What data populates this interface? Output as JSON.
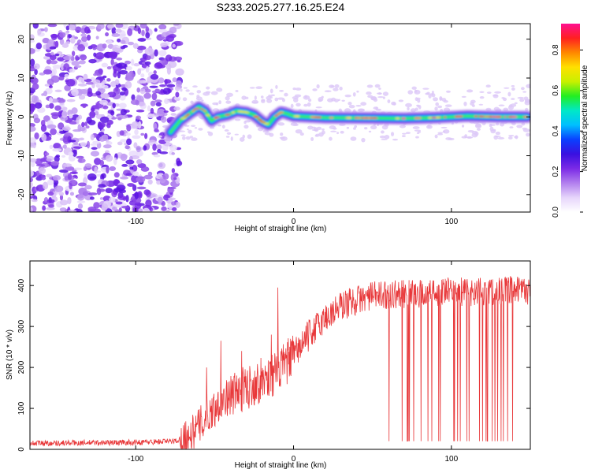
{
  "title": "S233.2025.277.16.25.E24",
  "chart_data": [
    {
      "type": "heatmap",
      "name": "spectrogram",
      "xlabel": "Height of straight line (km)",
      "ylabel": "Frequency (Hz)",
      "xlim": [
        -167,
        150
      ],
      "ylim": [
        -24.5,
        24
      ],
      "xticks": [
        -100,
        0,
        100
      ],
      "yticks": [
        -20,
        -10,
        0,
        10,
        20
      ],
      "xtick_labels": [
        "-100",
        "0",
        "100"
      ],
      "ytick_labels": [
        "-20",
        "-10",
        "0",
        "10",
        "20"
      ],
      "noise_region_km": [
        -167,
        -78
      ],
      "ridge": [
        {
          "x": -78,
          "y": -4
        },
        {
          "x": -72,
          "y": -1
        },
        {
          "x": -66,
          "y": 0.8
        },
        {
          "x": -60,
          "y": 2.5
        },
        {
          "x": -56,
          "y": 1.5
        },
        {
          "x": -52,
          "y": -1
        },
        {
          "x": -48,
          "y": 0
        },
        {
          "x": -42,
          "y": 0.5
        },
        {
          "x": -36,
          "y": 1.5
        },
        {
          "x": -30,
          "y": 1.2
        },
        {
          "x": -25,
          "y": 0.5
        },
        {
          "x": -20,
          "y": -1.2
        },
        {
          "x": -16,
          "y": -2
        },
        {
          "x": -12,
          "y": 0
        },
        {
          "x": -8,
          "y": 1.2
        },
        {
          "x": -4,
          "y": 0.8
        },
        {
          "x": 0,
          "y": 0.2
        },
        {
          "x": 20,
          "y": -0.2
        },
        {
          "x": 50,
          "y": -0.3
        },
        {
          "x": 70,
          "y": -0.4
        },
        {
          "x": 90,
          "y": -0.2
        },
        {
          "x": 110,
          "y": 0.2
        },
        {
          "x": 130,
          "y": 0
        },
        {
          "x": 148,
          "y": 0
        }
      ],
      "colorbar": {
        "label": "Normalized spectral amplitude",
        "range": [
          0,
          0.93
        ],
        "ticks": [
          0,
          0.2,
          0.4,
          0.6,
          0.8
        ],
        "tick_labels": [
          "0.0",
          "0.2",
          "0.4",
          "0.6",
          "0.8"
        ],
        "colors": [
          "#ffffff",
          "#e6d5fb",
          "#b27fee",
          "#7b2ae6",
          "#3a10e0",
          "#0a40ff",
          "#00bfff",
          "#00e8c8",
          "#22ee22",
          "#c8f000",
          "#ffe000",
          "#ff8800",
          "#ff2020",
          "#ff1090"
        ]
      }
    },
    {
      "type": "line",
      "name": "snr",
      "xlabel": "Height of straight line (km)",
      "ylabel": "SNR (10 * v/v)",
      "xlim": [
        -167,
        150
      ],
      "ylim": [
        0,
        460
      ],
      "xticks": [
        -100,
        0,
        100
      ],
      "yticks": [
        0,
        100,
        200,
        300,
        400
      ],
      "xtick_labels": [
        "-100",
        "0",
        "100"
      ],
      "ytick_labels": [
        "0",
        "100",
        "200",
        "300",
        "400"
      ],
      "line_color": "#e8383a",
      "profile": [
        {
          "x": -167,
          "y": 15
        },
        {
          "x": -100,
          "y": 17
        },
        {
          "x": -75,
          "y": 20
        },
        {
          "x": -65,
          "y": 35
        },
        {
          "x": -55,
          "y": 80
        },
        {
          "x": -45,
          "y": 120
        },
        {
          "x": -30,
          "y": 150
        },
        {
          "x": -20,
          "y": 170
        },
        {
          "x": -10,
          "y": 190
        },
        {
          "x": 0,
          "y": 230
        },
        {
          "x": 10,
          "y": 280
        },
        {
          "x": 20,
          "y": 320
        },
        {
          "x": 30,
          "y": 350
        },
        {
          "x": 40,
          "y": 365
        },
        {
          "x": 50,
          "y": 375
        },
        {
          "x": 60,
          "y": 378
        },
        {
          "x": 80,
          "y": 380
        },
        {
          "x": 100,
          "y": 385
        },
        {
          "x": 120,
          "y": 385
        },
        {
          "x": 150,
          "y": 388
        }
      ],
      "spikes": [
        {
          "x": -46,
          "y": 265
        },
        {
          "x": -10,
          "y": 395
        },
        {
          "x": -14,
          "y": 280
        },
        {
          "x": -33,
          "y": 240
        },
        {
          "x": -55,
          "y": 200
        }
      ],
      "dropout_range_km": [
        60,
        142
      ],
      "dropout_level": 20
    }
  ]
}
